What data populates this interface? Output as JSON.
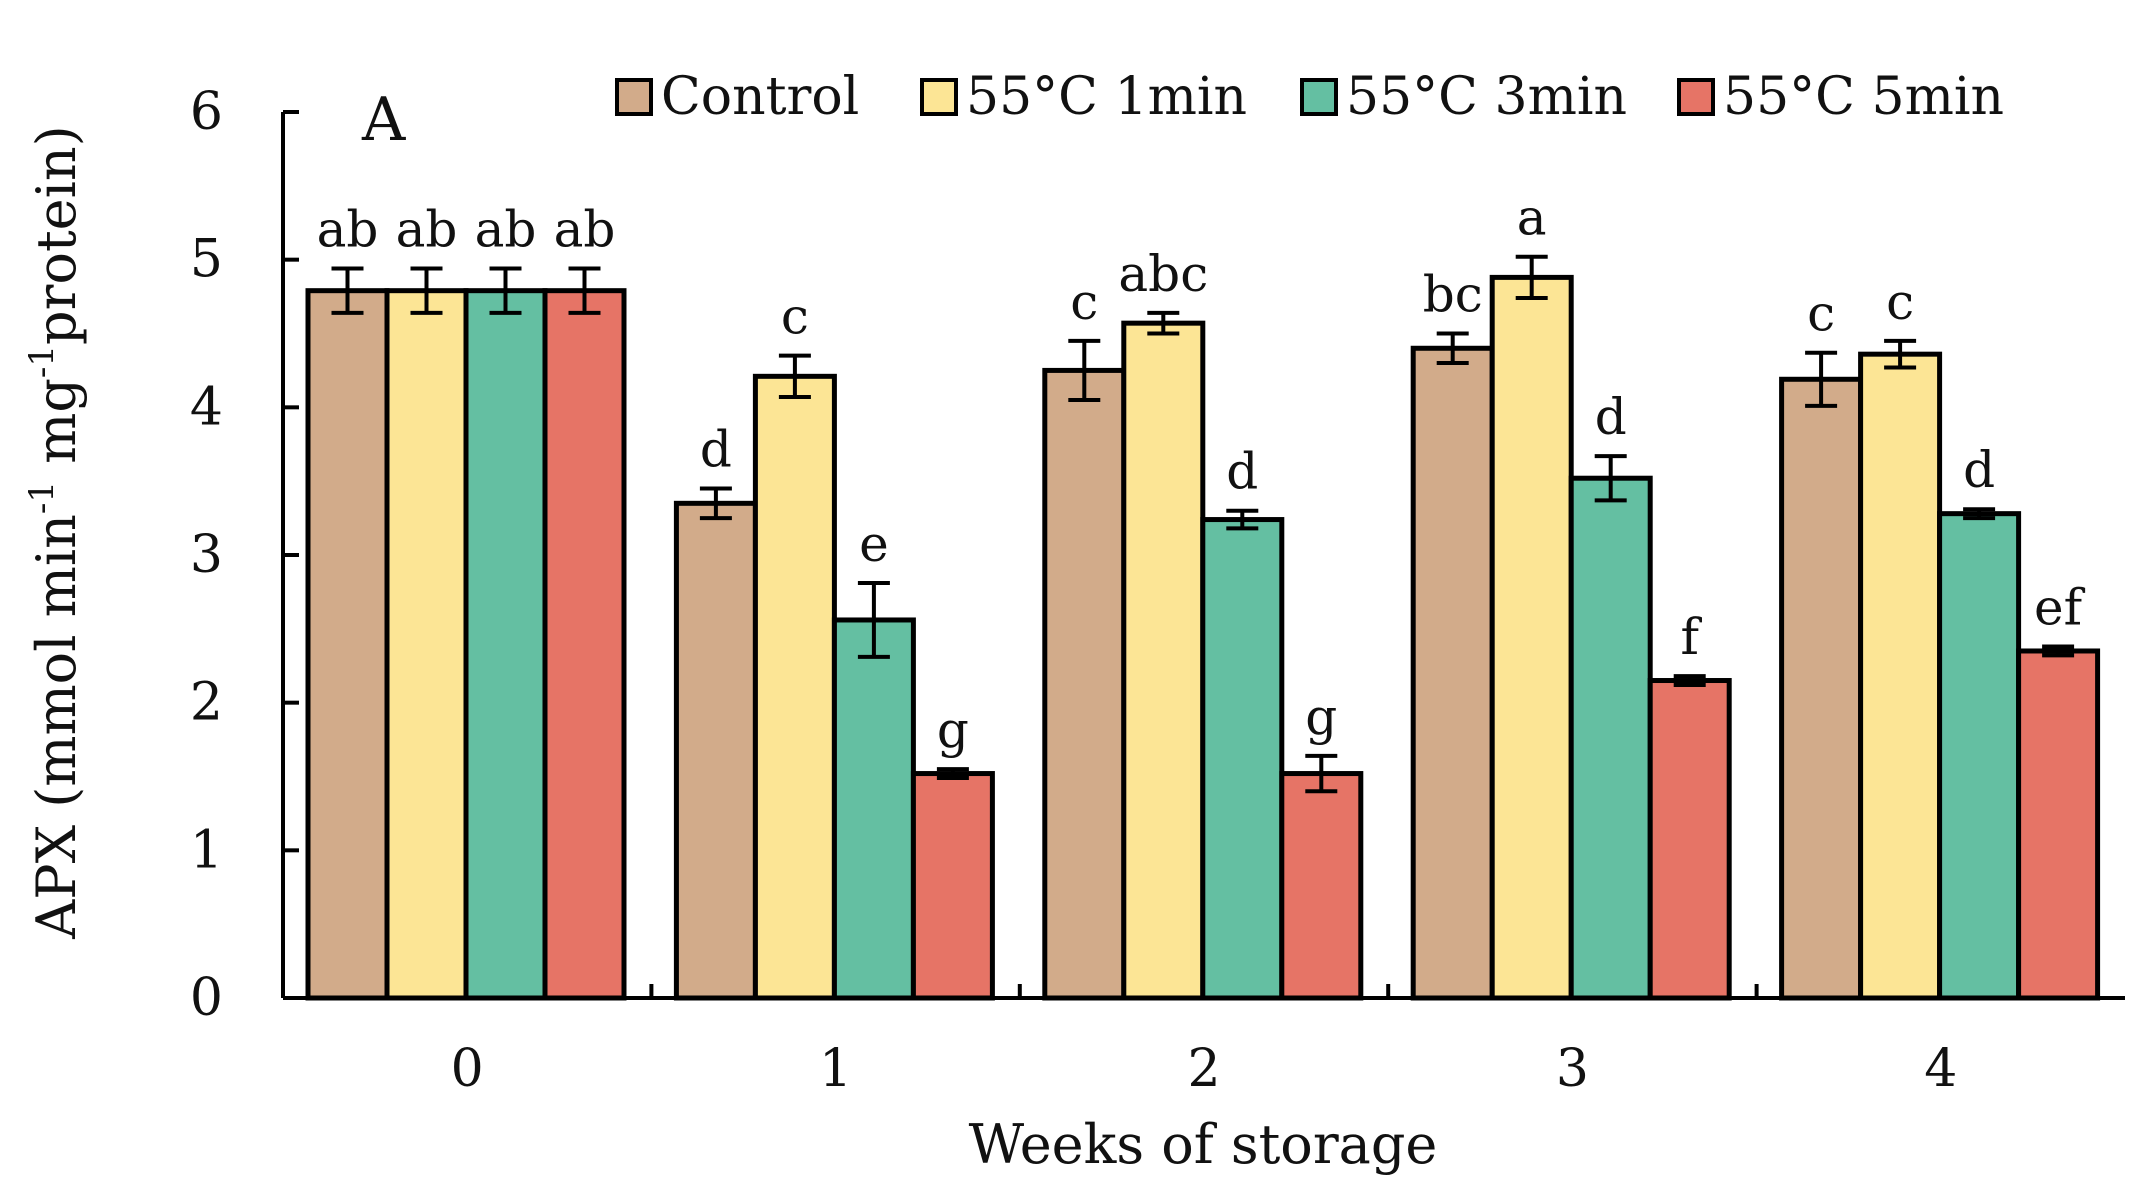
{
  "chart_data": {
    "type": "bar",
    "panel_label": "A",
    "title": "",
    "xlabel": "Weeks of storage",
    "ylabel": {
      "main": "APX (mmol min",
      "sup1": "-1",
      "mid": " mg",
      "sup2": "-1",
      "end": "protein)"
    },
    "categories": [
      "0",
      "1",
      "2",
      "3",
      "4"
    ],
    "ylim": [
      0,
      6
    ],
    "yticks": [
      "0",
      "1",
      "2",
      "3",
      "4",
      "5",
      "6"
    ],
    "grid": false,
    "legend_position": "top",
    "series": [
      {
        "name": "Control",
        "color": "#d2ab8a",
        "values": [
          4.79,
          3.35,
          4.25,
          4.4,
          4.19
        ],
        "errors": [
          0.15,
          0.1,
          0.2,
          0.1,
          0.18
        ],
        "labels": [
          "ab",
          "d",
          "c",
          "bc",
          "c"
        ]
      },
      {
        "name": "55°C 1min",
        "color": "#fce595",
        "values": [
          4.79,
          4.21,
          4.57,
          4.88,
          4.36
        ],
        "errors": [
          0.15,
          0.14,
          0.07,
          0.14,
          0.09
        ],
        "labels": [
          "ab",
          "c",
          "abc",
          "a",
          "c"
        ]
      },
      {
        "name": "55°C 3min",
        "color": "#64bfa2",
        "values": [
          4.79,
          2.56,
          3.24,
          3.52,
          3.28
        ],
        "errors": [
          0.15,
          0.25,
          0.06,
          0.15,
          0.03
        ],
        "labels": [
          "ab",
          "e",
          "d",
          "d",
          "d"
        ]
      },
      {
        "name": "55°C 5min",
        "color": "#e67466",
        "values": [
          4.79,
          1.52,
          1.52,
          2.15,
          2.35
        ],
        "errors": [
          0.15,
          0.03,
          0.12,
          0.03,
          0.03
        ],
        "labels": [
          "ab",
          "g",
          "g",
          "f",
          "ef"
        ]
      }
    ]
  }
}
